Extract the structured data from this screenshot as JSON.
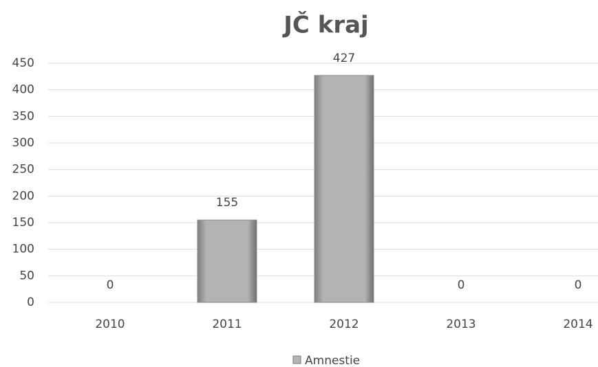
{
  "chart_data": {
    "type": "bar",
    "title": "JČ kraj",
    "categories": [
      "2010",
      "2011",
      "2012",
      "2013",
      "2014"
    ],
    "series": [
      {
        "name": "Amnestie",
        "color": "#b5b5b5",
        "values": [
          0,
          155,
          427,
          0,
          0
        ]
      }
    ],
    "ylim": [
      0,
      450
    ],
    "yticks": [
      0,
      50,
      100,
      150,
      200,
      250,
      300,
      350,
      400,
      450
    ],
    "grid": true,
    "legend": "bottom"
  }
}
